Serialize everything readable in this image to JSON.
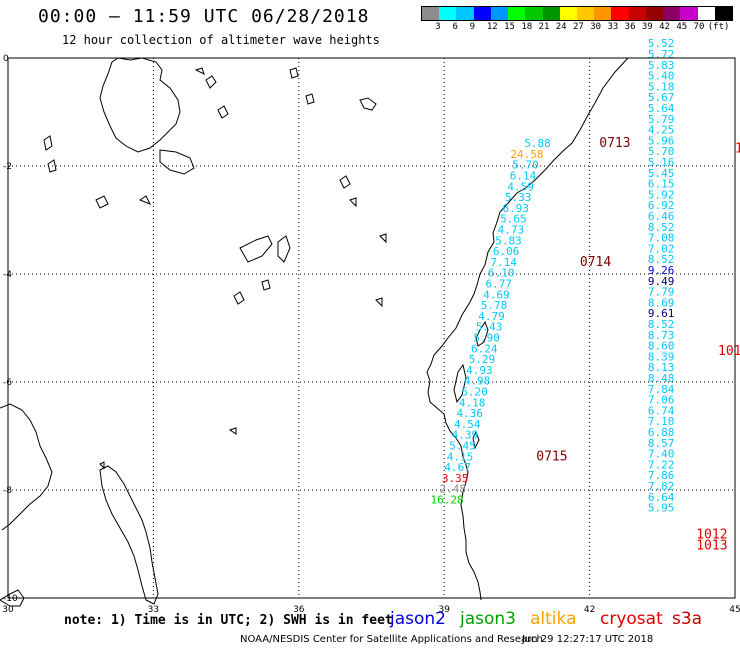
{
  "header": {
    "title": "00:00 – 11:59 UTC 06/28/2018",
    "subtitle": "12 hour collection of altimeter wave heights"
  },
  "legend": {
    "unit": "(ft)",
    "colors": [
      "#8c8c8c",
      "#00ffff",
      "#00c8ff",
      "#0000ff",
      "#0096ff",
      "#00ff00",
      "#00c800",
      "#009600",
      "#ffff00",
      "#ffc800",
      "#ff9600",
      "#ff0000",
      "#c80000",
      "#960000",
      "#8c0064",
      "#c800c8",
      "#ffffff",
      "#000000"
    ],
    "labels": [
      "3",
      "6",
      "9",
      "12",
      "15",
      "18",
      "21",
      "24",
      "27",
      "30",
      "33",
      "36",
      "39",
      "42",
      "45",
      "70"
    ]
  },
  "axes": {
    "x_ticks": [
      "30",
      "33",
      "36",
      "39",
      "42",
      "45"
    ],
    "y_ticks": [
      "0",
      "-2",
      "-4",
      "-6",
      "-8",
      "-10"
    ]
  },
  "satellites": [
    {
      "name": "jason2",
      "color": "#0000e0"
    },
    {
      "name": "jason3",
      "color": "#00a000"
    },
    {
      "name": "altika",
      "color": "#ffa000"
    },
    {
      "name": "cryosat",
      "color": "#e00000"
    },
    {
      "name": "s3a",
      "color": "#c00000"
    }
  ],
  "footer": {
    "note": "note: 1) Time is in UTC; 2) SWH is in feet",
    "credit": "NOAA/NESDIS Center for Satellite Applications and Research",
    "generated": "Jun 29 12:27:17 UTC 2018"
  },
  "chart_data": {
    "type": "map",
    "xlim": [
      30,
      45
    ],
    "ylim": [
      -10,
      0
    ],
    "grid": true,
    "time_labels": [
      {
        "text": "0713",
        "lon": 42.2,
        "lat": -1.65,
        "color": "#800000"
      },
      {
        "text": "0714",
        "lon": 41.8,
        "lat": -3.85,
        "color": "#800000"
      },
      {
        "text": "0715",
        "lon": 40.9,
        "lat": -7.45,
        "color": "#800000"
      }
    ],
    "edge_labels": [
      {
        "text": "1",
        "lon": 45.0,
        "lat": -1.75,
        "color": "#e00000"
      },
      {
        "text": "101",
        "lon": 44.65,
        "lat": -5.5,
        "color": "#e00000"
      },
      {
        "text": "1012",
        "lon": 44.2,
        "lat": -8.9,
        "color": "#e00000"
      },
      {
        "text": "1013",
        "lon": 44.2,
        "lat": -9.1,
        "color": "#e00000"
      }
    ],
    "track_west": [
      {
        "lon": 41.2,
        "lat": -1.65,
        "value": "5.88",
        "color": "#00c8ff"
      },
      {
        "lon": 41.05,
        "lat": -1.85,
        "value": "24.58",
        "color": "#ffa000"
      },
      {
        "lon": 40.95,
        "lat": -2.05,
        "value": "5.70",
        "color": "#00c8ff"
      },
      {
        "lon": 40.9,
        "lat": -2.25,
        "value": "6.14",
        "color": "#00c8ff"
      },
      {
        "lon": 40.85,
        "lat": -2.45,
        "value": "4.59",
        "color": "#00c8ff"
      },
      {
        "lon": 40.8,
        "lat": -2.65,
        "value": "5.33",
        "color": "#00c8ff"
      },
      {
        "lon": 40.75,
        "lat": -2.85,
        "value": "6.93",
        "color": "#00c8ff"
      },
      {
        "lon": 40.7,
        "lat": -3.05,
        "value": "5.65",
        "color": "#00c8ff"
      },
      {
        "lon": 40.65,
        "lat": -3.25,
        "value": "4.73",
        "color": "#00c8ff"
      },
      {
        "lon": 40.6,
        "lat": -3.45,
        "value": "5.83",
        "color": "#00c8ff"
      },
      {
        "lon": 40.55,
        "lat": -3.65,
        "value": "6.06",
        "color": "#00c8ff"
      },
      {
        "lon": 40.5,
        "lat": -3.85,
        "value": "7.14",
        "color": "#00c8ff"
      },
      {
        "lon": 40.45,
        "lat": -4.05,
        "value": "6.10",
        "color": "#00c8ff"
      },
      {
        "lon": 40.4,
        "lat": -4.25,
        "value": "6.77",
        "color": "#00c8ff"
      },
      {
        "lon": 40.35,
        "lat": -4.45,
        "value": "4.69",
        "color": "#00c8ff"
      },
      {
        "lon": 40.3,
        "lat": -4.65,
        "value": "5.78",
        "color": "#00c8ff"
      },
      {
        "lon": 40.25,
        "lat": -4.85,
        "value": "4.79",
        "color": "#00c8ff"
      },
      {
        "lon": 40.2,
        "lat": -5.05,
        "value": "5.43",
        "color": "#00c8ff"
      },
      {
        "lon": 40.15,
        "lat": -5.25,
        "value": "5.90",
        "color": "#00c8ff"
      },
      {
        "lon": 40.1,
        "lat": -5.45,
        "value": "6.24",
        "color": "#00c8ff"
      },
      {
        "lon": 40.05,
        "lat": -5.65,
        "value": "5.29",
        "color": "#00c8ff"
      },
      {
        "lon": 40.0,
        "lat": -5.85,
        "value": "4.93",
        "color": "#00c8ff"
      },
      {
        "lon": 39.95,
        "lat": -6.05,
        "value": "4.98",
        "color": "#00c8ff"
      },
      {
        "lon": 39.9,
        "lat": -6.25,
        "value": "5.20",
        "color": "#00c8ff"
      },
      {
        "lon": 39.85,
        "lat": -6.45,
        "value": "4.18",
        "color": "#00c8ff"
      },
      {
        "lon": 39.8,
        "lat": -6.65,
        "value": "4.36",
        "color": "#00c8ff"
      },
      {
        "lon": 39.75,
        "lat": -6.85,
        "value": "4.54",
        "color": "#00c8ff"
      },
      {
        "lon": 39.7,
        "lat": -7.05,
        "value": "4.39",
        "color": "#00c8ff"
      },
      {
        "lon": 39.65,
        "lat": -7.25,
        "value": "5.45",
        "color": "#00c8ff"
      },
      {
        "lon": 39.6,
        "lat": -7.45,
        "value": "4.15",
        "color": "#00c8ff"
      },
      {
        "lon": 39.55,
        "lat": -7.65,
        "value": "4.67",
        "color": "#00c8ff"
      },
      {
        "lon": 39.5,
        "lat": -7.85,
        "value": "3.35",
        "color": "#ff0000"
      },
      {
        "lon": 39.45,
        "lat": -8.05,
        "value": "2.48",
        "color": "#8c8c8c"
      },
      {
        "lon": 39.4,
        "lat": -8.25,
        "value": "16.28",
        "color": "#00c800"
      }
    ],
    "track_east": [
      {
        "lon": 43.75,
        "lat": 0.2,
        "value": "5.52",
        "color": "#00c8ff"
      },
      {
        "lon": 43.75,
        "lat": 0.0,
        "value": "5.72",
        "color": "#00c8ff"
      },
      {
        "lon": 43.75,
        "lat": -0.2,
        "value": "5.83",
        "color": "#00c8ff"
      },
      {
        "lon": 43.75,
        "lat": -0.4,
        "value": "5.40",
        "color": "#00c8ff"
      },
      {
        "lon": 43.75,
        "lat": -0.6,
        "value": "5.18",
        "color": "#00c8ff"
      },
      {
        "lon": 43.75,
        "lat": -0.8,
        "value": "5.67",
        "color": "#00c8ff"
      },
      {
        "lon": 43.75,
        "lat": -1.0,
        "value": "5.64",
        "color": "#00c8ff"
      },
      {
        "lon": 43.75,
        "lat": -1.2,
        "value": "5.79",
        "color": "#00c8ff"
      },
      {
        "lon": 43.75,
        "lat": -1.4,
        "value": "4.25",
        "color": "#00c8ff"
      },
      {
        "lon": 43.75,
        "lat": -1.6,
        "value": "5.96",
        "color": "#00c8ff"
      },
      {
        "lon": 43.75,
        "lat": -1.8,
        "value": "5.70",
        "color": "#00c8ff"
      },
      {
        "lon": 43.75,
        "lat": -2.0,
        "value": "5.16",
        "color": "#00c8ff"
      },
      {
        "lon": 43.75,
        "lat": -2.2,
        "value": "5.45",
        "color": "#00c8ff"
      },
      {
        "lon": 43.75,
        "lat": -2.4,
        "value": "6.15",
        "color": "#00c8ff"
      },
      {
        "lon": 43.75,
        "lat": -2.6,
        "value": "5.92",
        "color": "#00c8ff"
      },
      {
        "lon": 43.75,
        "lat": -2.8,
        "value": "6.92",
        "color": "#00c8ff"
      },
      {
        "lon": 43.75,
        "lat": -3.0,
        "value": "6.46",
        "color": "#00c8ff"
      },
      {
        "lon": 43.75,
        "lat": -3.2,
        "value": "8.52",
        "color": "#00c8ff"
      },
      {
        "lon": 43.75,
        "lat": -3.4,
        "value": "7.08",
        "color": "#00c8ff"
      },
      {
        "lon": 43.75,
        "lat": -3.6,
        "value": "7.02",
        "color": "#00c8ff"
      },
      {
        "lon": 43.75,
        "lat": -3.8,
        "value": "8.52",
        "color": "#00c8ff"
      },
      {
        "lon": 43.75,
        "lat": -4.0,
        "value": "9.26",
        "color": "#0000ff"
      },
      {
        "lon": 43.75,
        "lat": -4.2,
        "value": "9.49",
        "color": "#000080"
      },
      {
        "lon": 43.75,
        "lat": -4.4,
        "value": "7.79",
        "color": "#00c8ff"
      },
      {
        "lon": 43.75,
        "lat": -4.6,
        "value": "8.69",
        "color": "#00c8ff"
      },
      {
        "lon": 43.75,
        "lat": -4.8,
        "value": "9.61",
        "color": "#000080"
      },
      {
        "lon": 43.75,
        "lat": -5.0,
        "value": "8.52",
        "color": "#00c8ff"
      },
      {
        "lon": 43.75,
        "lat": -5.2,
        "value": "8.73",
        "color": "#00c8ff"
      },
      {
        "lon": 43.75,
        "lat": -5.4,
        "value": "8.60",
        "color": "#00c8ff"
      },
      {
        "lon": 43.75,
        "lat": -5.6,
        "value": "8.39",
        "color": "#00c8ff"
      },
      {
        "lon": 43.75,
        "lat": -5.8,
        "value": "8.13",
        "color": "#00c8ff"
      },
      {
        "lon": 43.75,
        "lat": -6.0,
        "value": "8.48",
        "color": "#00c8ff"
      },
      {
        "lon": 43.75,
        "lat": -6.2,
        "value": "7.84",
        "color": "#00c8ff"
      },
      {
        "lon": 43.75,
        "lat": -6.4,
        "value": "7.06",
        "color": "#00c8ff"
      },
      {
        "lon": 43.75,
        "lat": -6.6,
        "value": "6.74",
        "color": "#00c8ff"
      },
      {
        "lon": 43.75,
        "lat": -6.8,
        "value": "7.10",
        "color": "#00c8ff"
      },
      {
        "lon": 43.75,
        "lat": -7.0,
        "value": "6.88",
        "color": "#00c8ff"
      },
      {
        "lon": 43.75,
        "lat": -7.2,
        "value": "8.57",
        "color": "#00c8ff"
      },
      {
        "lon": 43.75,
        "lat": -7.4,
        "value": "7.40",
        "color": "#00c8ff"
      },
      {
        "lon": 43.75,
        "lat": -7.6,
        "value": "7.22",
        "color": "#00c8ff"
      },
      {
        "lon": 43.75,
        "lat": -7.8,
        "value": "7.86",
        "color": "#00c8ff"
      },
      {
        "lon": 43.75,
        "lat": -8.0,
        "value": "7.82",
        "color": "#00c8ff"
      },
      {
        "lon": 43.75,
        "lat": -8.2,
        "value": "6.64",
        "color": "#00c8ff"
      },
      {
        "lon": 43.75,
        "lat": -8.4,
        "value": "5.95",
        "color": "#00c8ff"
      }
    ]
  }
}
